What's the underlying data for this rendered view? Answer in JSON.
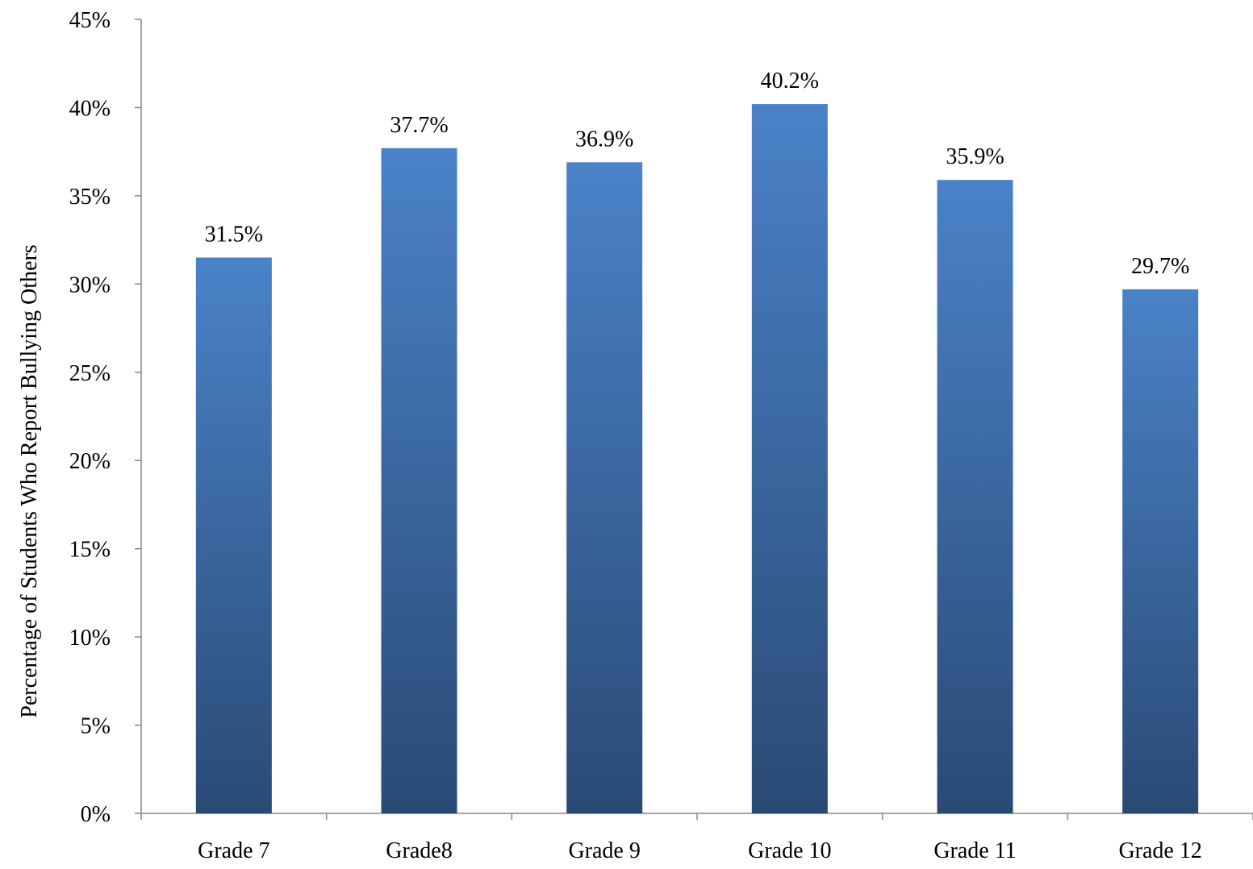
{
  "chart_data": {
    "type": "bar",
    "title": "",
    "xlabel": "",
    "ylabel": "Percentage of Students Who Report Bullying Others",
    "categories": [
      "Grade 7",
      "Grade8",
      "Grade 9",
      "Grade 10",
      "Grade 11",
      "Grade 12"
    ],
    "values": [
      31.5,
      37.7,
      36.9,
      40.2,
      35.9,
      29.7
    ],
    "data_labels": [
      "31.5%",
      "37.7%",
      "36.9%",
      "40.2%",
      "35.9%",
      "29.7%"
    ],
    "ylim": [
      0,
      45
    ],
    "yticks": [
      0,
      5,
      10,
      15,
      20,
      25,
      30,
      35,
      40,
      45
    ],
    "ytick_labels": [
      "0%",
      "5%",
      "10%",
      "15%",
      "20%",
      "25%",
      "30%",
      "35%",
      "40%",
      "45%"
    ],
    "grid": false,
    "legend": "none",
    "colors": {
      "bar_top": "#4a82c8",
      "bar_bottom": "#2a4a75",
      "axis": "#868686"
    }
  }
}
